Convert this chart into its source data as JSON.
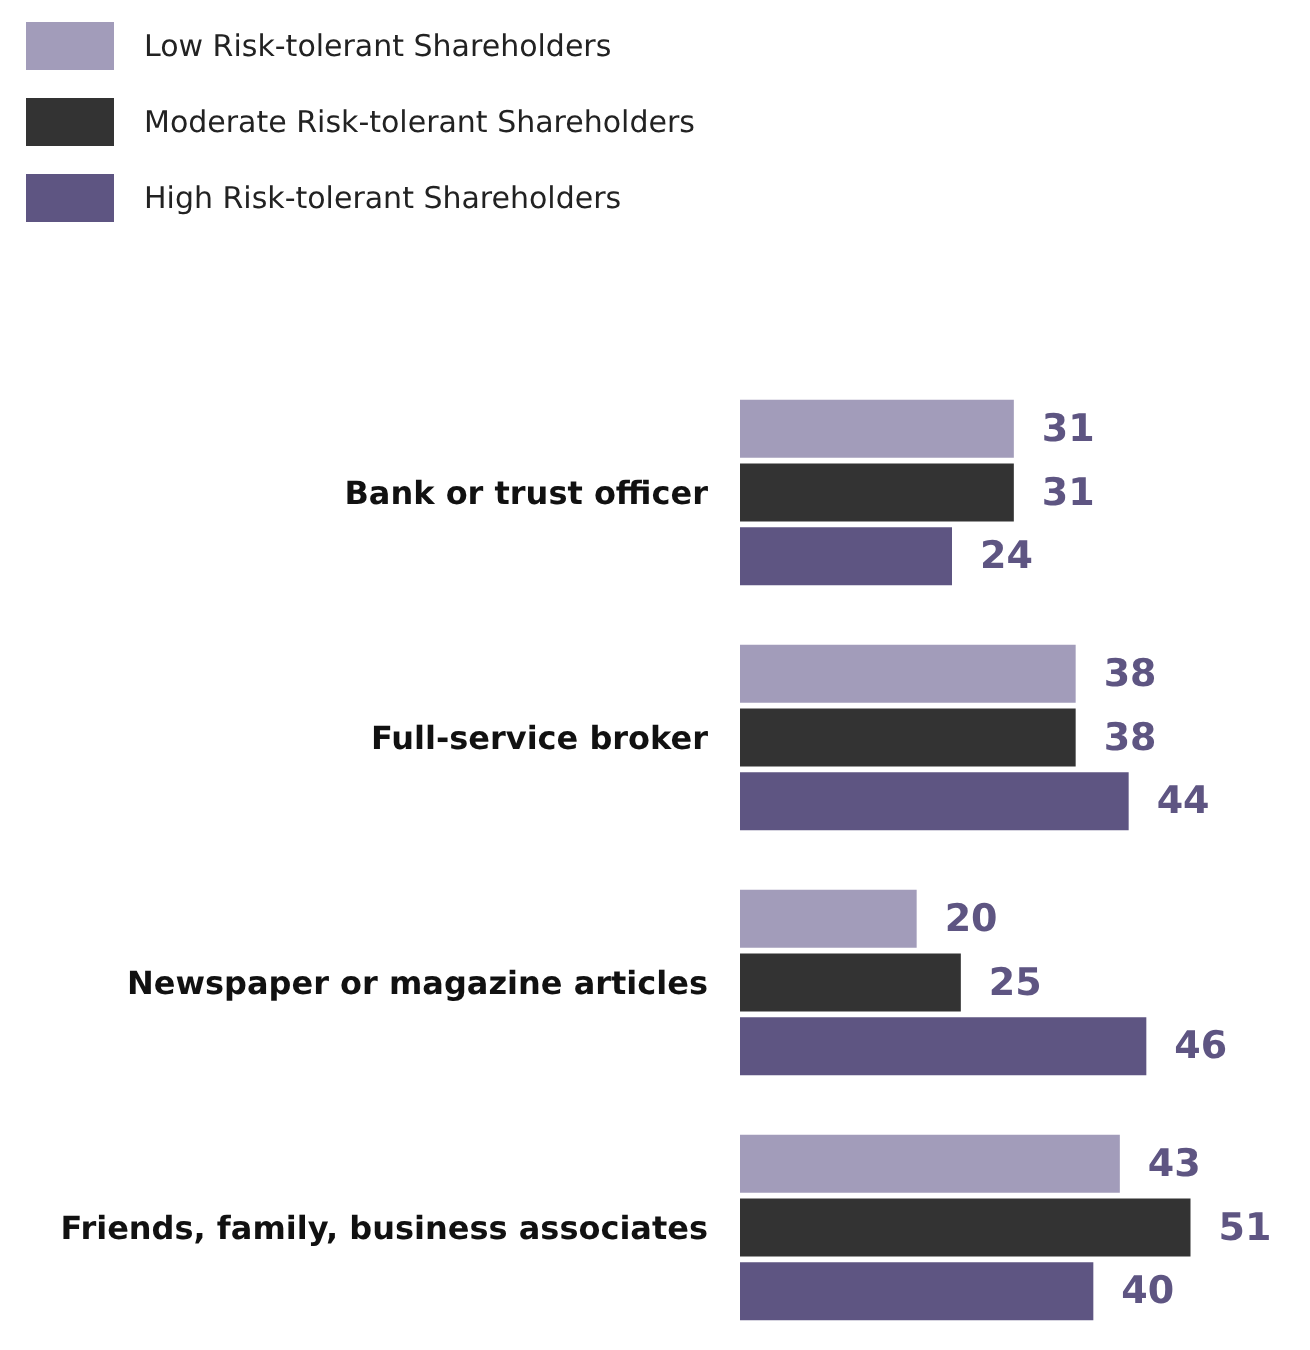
{
  "chart_data": {
    "type": "bar",
    "orientation": "horizontal",
    "categories": [
      "Bank or trust officer",
      "Full-service broker",
      "Newspaper or magazine articles",
      "Friends, family, business associates"
    ],
    "series": [
      {
        "name": "Low Risk-tolerant Shareholders",
        "color": "#a29cba",
        "values": [
          31,
          38,
          20,
          43
        ]
      },
      {
        "name": "Moderate Risk-tolerant Shareholders",
        "color": "#333333",
        "values": [
          31,
          38,
          25,
          51
        ]
      },
      {
        "name": "High Risk-tolerant Shareholders",
        "color": "#5e5582",
        "values": [
          24,
          44,
          46,
          40
        ]
      }
    ],
    "data_labels": true,
    "legend": "top left"
  }
}
